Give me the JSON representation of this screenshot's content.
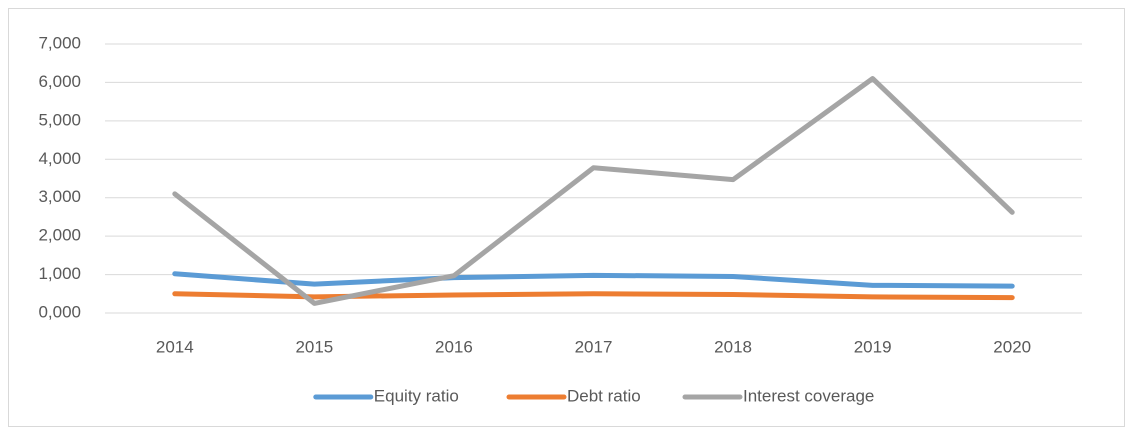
{
  "chart_data": {
    "type": "line",
    "categories": [
      "2014",
      "2015",
      "2016",
      "2017",
      "2018",
      "2019",
      "2020"
    ],
    "series": [
      {
        "name": "Equity ratio",
        "color": "#5b9bd5",
        "values": [
          1.02,
          0.75,
          0.92,
          0.98,
          0.95,
          0.72,
          0.7
        ]
      },
      {
        "name": "Debt ratio",
        "color": "#ed7d31",
        "values": [
          0.5,
          0.42,
          0.47,
          0.5,
          0.48,
          0.42,
          0.4
        ]
      },
      {
        "name": "Interest coverage",
        "color": "#a5a5a5",
        "values": [
          3.1,
          0.25,
          0.97,
          3.78,
          3.47,
          6.1,
          2.62
        ]
      }
    ],
    "ylim": [
      0,
      7
    ],
    "yticks": [
      {
        "value": 0,
        "label": "0,000"
      },
      {
        "value": 1,
        "label": "1,000"
      },
      {
        "value": 2,
        "label": "2,000"
      },
      {
        "value": 3,
        "label": "3,000"
      },
      {
        "value": 4,
        "label": "4,000"
      },
      {
        "value": 5,
        "label": "5,000"
      },
      {
        "value": 6,
        "label": "6,000"
      },
      {
        "value": 7,
        "label": "7,000"
      }
    ],
    "grid": true,
    "legend": "bottom"
  }
}
